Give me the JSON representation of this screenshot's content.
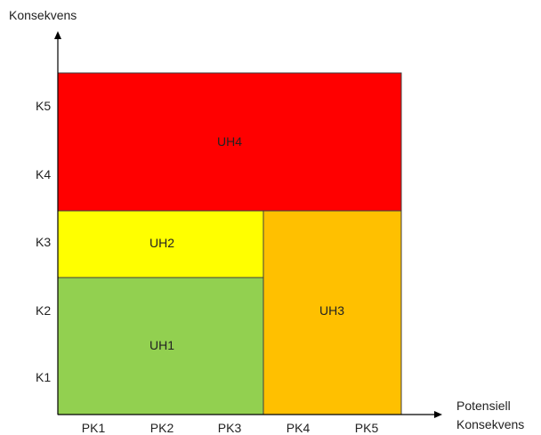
{
  "y_axis_label": "Konsekvens",
  "x_axis_label_line1": "Potensiell",
  "x_axis_label_line2": "Konsekvens",
  "y_ticks": [
    "K1",
    "K2",
    "K3",
    "K4",
    "K5"
  ],
  "x_ticks": [
    "PK1",
    "PK2",
    "PK3",
    "PK4",
    "PK5"
  ],
  "zones": [
    {
      "id": "uh1",
      "label": "UH1",
      "color": "#92d050",
      "x_from": "PK1",
      "x_to": "PK3",
      "y_from": "K1",
      "y_to": "K2"
    },
    {
      "id": "uh2",
      "label": "UH2",
      "color": "#ffff00",
      "x_from": "PK1",
      "x_to": "PK3",
      "y_from": "K3",
      "y_to": "K3"
    },
    {
      "id": "uh3",
      "label": "UH3",
      "color": "#ffc000",
      "x_from": "PK4",
      "x_to": "PK5",
      "y_from": "K1",
      "y_to": "K3"
    },
    {
      "id": "uh4",
      "label": "UH4",
      "color": "#ff0000",
      "x_from": "PK1",
      "x_to": "PK5",
      "y_from": "K4",
      "y_to": "K5"
    }
  ],
  "axis_color": "#000000",
  "zone_border_color": "#3f3f3f"
}
